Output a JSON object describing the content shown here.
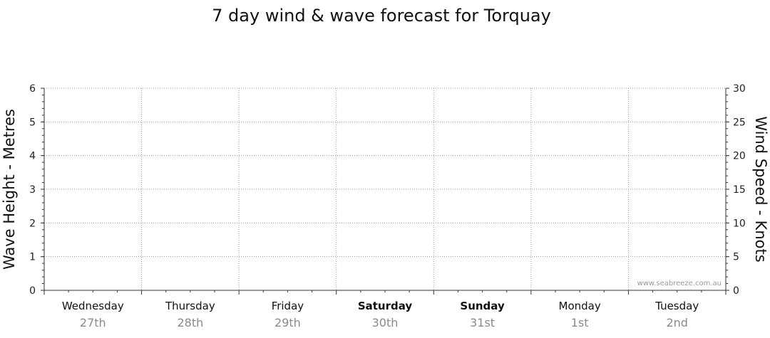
{
  "chart_data": {
    "type": "line",
    "title": "7 day wind & wave forecast for Torquay",
    "ylabel": "Wave Height - Metres",
    "ylabel_right": "Wind Speed - Knots",
    "ylim": [
      0,
      6
    ],
    "ylim_right": [
      0,
      30
    ],
    "yticks": [
      0,
      1,
      2,
      3,
      4,
      5,
      6
    ],
    "yticks_right": [
      0,
      5,
      10,
      15,
      20,
      25,
      30
    ],
    "days": [
      {
        "name": "Wednesday",
        "date": "27th",
        "bold": false
      },
      {
        "name": "Thursday",
        "date": "28th",
        "bold": false
      },
      {
        "name": "Friday",
        "date": "29th",
        "bold": false
      },
      {
        "name": "Saturday",
        "date": "30th",
        "bold": true
      },
      {
        "name": "Sunday",
        "date": "31st",
        "bold": true
      },
      {
        "name": "Monday",
        "date": "1st",
        "bold": false
      },
      {
        "name": "Tuesday",
        "date": "2nd",
        "bold": false
      }
    ],
    "series": [],
    "grid": true,
    "watermark": "www.seabreeze.com.au"
  }
}
